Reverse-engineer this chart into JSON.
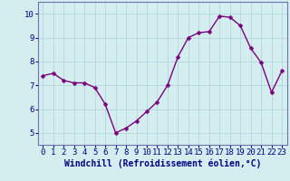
{
  "x": [
    0,
    1,
    2,
    3,
    4,
    5,
    6,
    7,
    8,
    9,
    10,
    11,
    12,
    13,
    14,
    15,
    16,
    17,
    18,
    19,
    20,
    21,
    22,
    23
  ],
  "y": [
    7.4,
    7.5,
    7.2,
    7.1,
    7.1,
    6.9,
    6.2,
    5.0,
    5.2,
    5.5,
    5.9,
    6.3,
    7.0,
    8.2,
    9.0,
    9.2,
    9.25,
    9.9,
    9.85,
    9.5,
    8.55,
    7.95,
    6.7,
    7.6
  ],
  "line_color": "#7B0080",
  "marker": "D",
  "marker_size": 2.5,
  "linewidth": 1.0,
  "xlabel": "Windchill (Refroidissement éolien,°C)",
  "xlabel_fontsize": 7,
  "xtick_labels": [
    "0",
    "1",
    "2",
    "3",
    "4",
    "5",
    "6",
    "7",
    "8",
    "9",
    "10",
    "11",
    "12",
    "13",
    "14",
    "15",
    "16",
    "17",
    "18",
    "19",
    "20",
    "21",
    "22",
    "23"
  ],
  "ytick_labels": [
    "5",
    "6",
    "7",
    "8",
    "9",
    "10"
  ],
  "yticks": [
    5,
    6,
    7,
    8,
    9,
    10
  ],
  "ylim": [
    4.5,
    10.5
  ],
  "xlim": [
    -0.5,
    23.5
  ],
  "bg_color": "#d4eef0",
  "grid_color": "#b0d8dc",
  "tick_fontsize": 6.5,
  "spine_color": "#7070b0"
}
